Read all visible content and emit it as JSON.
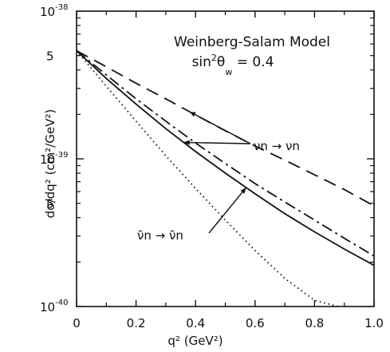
{
  "chart_data": {
    "type": "line",
    "title": "Weinberg-Salam Model",
    "subtitle": "sin²θ_W = 0.4",
    "xlabel": "q² (GeV²)",
    "ylabel": "dσ/dq² (cm²/GeV²)",
    "xlim": [
      0,
      1.0
    ],
    "ylim": [
      1e-40,
      1e-38
    ],
    "yscale": "log",
    "x_ticks": [
      "0",
      "0.2",
      "0.4",
      "0.6",
      "0.8",
      "1.0"
    ],
    "y_ticks": [
      {
        "base": "10",
        "exp": "-38"
      },
      {
        "base": "5",
        "exp": ""
      },
      {
        "base": "10",
        "exp": "-39"
      },
      {
        "base": "5",
        "exp": ""
      },
      {
        "base": "10",
        "exp": "-40"
      }
    ],
    "series": [
      {
        "style": "dashed",
        "x": [
          0,
          0.1,
          0.2,
          0.3,
          0.4,
          0.5,
          0.6,
          0.7,
          0.8,
          0.9,
          1.0
        ],
        "y": [
          5.4e-39,
          4.2e-39,
          3.25e-39,
          2.55e-39,
          1.98e-39,
          1.55e-39,
          1.22e-39,
          9.8e-40,
          7.8e-40,
          6.2e-40,
          4.8e-40
        ]
      },
      {
        "style": "dashdot",
        "x": [
          0,
          0.1,
          0.2,
          0.3,
          0.4,
          0.5,
          0.6,
          0.7,
          0.8,
          0.9,
          1.0
        ],
        "y": [
          5.4e-39,
          3.7e-39,
          2.55e-39,
          1.8e-39,
          1.28e-39,
          9.3e-40,
          6.8e-40,
          5.1e-40,
          3.85e-40,
          2.9e-40,
          2.2e-40
        ]
      },
      {
        "style": "solid",
        "x": [
          0,
          0.1,
          0.2,
          0.3,
          0.4,
          0.5,
          0.6,
          0.7,
          0.8,
          0.9,
          1.0
        ],
        "y": [
          5.4e-39,
          3.5e-39,
          2.35e-39,
          1.6e-39,
          1.12e-39,
          8e-40,
          5.8e-40,
          4.25e-40,
          3.2e-40,
          2.45e-40,
          1.9e-40
        ]
      },
      {
        "style": "dotted",
        "x": [
          0,
          0.1,
          0.2,
          0.3,
          0.4,
          0.5,
          0.6,
          0.7,
          0.8,
          0.88
        ],
        "y": [
          5.4e-39,
          3.1e-39,
          1.8e-39,
          1.05e-39,
          6.3e-40,
          3.85e-40,
          2.4e-40,
          1.55e-40,
          1.1e-40,
          1e-40
        ]
      }
    ],
    "annotations": [
      {
        "text": "νn → νn",
        "points_to": [
          "dashed",
          "solid"
        ],
        "at_x": 0.36
      },
      {
        "text": "ν̄n → ν̄n",
        "points_to": [
          "solid"
        ],
        "at_x": 0.57
      }
    ],
    "grid": false,
    "legend": "none"
  }
}
